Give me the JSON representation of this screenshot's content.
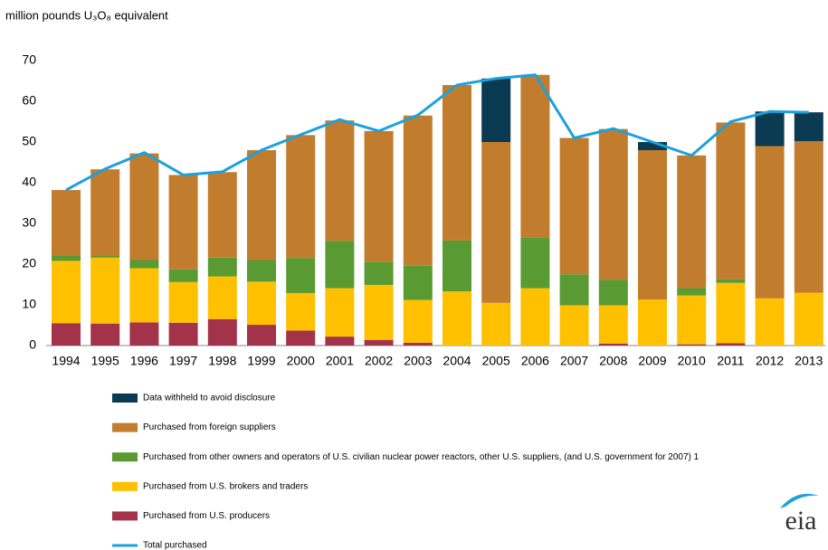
{
  "chart_data": {
    "type": "bar",
    "title": "million pounds U₃O₈ equivalent",
    "logo": "eia",
    "categories": [
      "1994",
      "1995",
      "1996",
      "1997",
      "1998",
      "1999",
      "2000",
      "2001",
      "2002",
      "2003",
      "2004",
      "2005",
      "2006",
      "2007",
      "2008",
      "2009",
      "2010",
      "2011",
      "2012",
      "2013"
    ],
    "stacked": true,
    "grid": false,
    "ylim": [
      0,
      70
    ],
    "yticks": [
      0,
      10,
      20,
      30,
      40,
      50,
      60,
      70
    ],
    "series": [
      {
        "name": "Purchased from U.S. producers",
        "color": "#a3334a",
        "values": [
          5.5,
          5.4,
          5.7,
          5.6,
          6.5,
          5.1,
          3.7,
          2.2,
          1.4,
          0.7,
          0,
          0,
          0,
          0,
          0.5,
          0,
          0.3,
          0.6,
          0,
          0
        ]
      },
      {
        "name": "Purchased from U.S. brokers and traders",
        "color": "#ffc000",
        "values": [
          15.3,
          16.2,
          13.3,
          10,
          10.5,
          10.6,
          9.2,
          11.9,
          13.5,
          10.5,
          13.3,
          10.5,
          14.1,
          9.9,
          9.4,
          11.3,
          12,
          14.8,
          11.6,
          13
        ]
      },
      {
        "name": "Purchased from other owners and operators of U.S. civilian nuclear power reactors, other U.S. suppliers, (and U.S. government for 2007) 1",
        "color": "#5a9a32",
        "values": [
          1.2,
          0.4,
          2,
          3.1,
          4.6,
          5.3,
          8.6,
          11.6,
          5.7,
          8.4,
          12.5,
          0,
          12.5,
          7.6,
          6.3,
          0,
          1.8,
          0.9,
          0,
          0
        ]
      },
      {
        "name": "Purchased from foreign suppliers",
        "color": "#c27c2e",
        "values": [
          16.2,
          21.3,
          26.2,
          23.2,
          21,
          27,
          30.2,
          29.6,
          32.1,
          36.9,
          38.2,
          39.5,
          39.9,
          33.5,
          37,
          36.7,
          32.6,
          38.5,
          37.4,
          37.2
        ]
      },
      {
        "name": "Data withheld to avoid disclosure",
        "color": "#0b3a53",
        "values": [
          0,
          0,
          0,
          0,
          0,
          0,
          0,
          0,
          0,
          0,
          0,
          15.6,
          0,
          0,
          0,
          2,
          0,
          0,
          8.5,
          7.1
        ]
      },
      {
        "name": "Total purchased",
        "color": "#1ba1dc",
        "type": "line",
        "values": [
          38.2,
          43.4,
          47.4,
          41.9,
          42.7,
          48,
          51.8,
          55.5,
          52.7,
          56.6,
          64,
          65.6,
          66.5,
          51,
          53.3,
          50,
          46.7,
          55,
          57.5,
          57.3
        ]
      }
    ],
    "legend_order": [
      4,
      3,
      2,
      1,
      0,
      5
    ]
  }
}
